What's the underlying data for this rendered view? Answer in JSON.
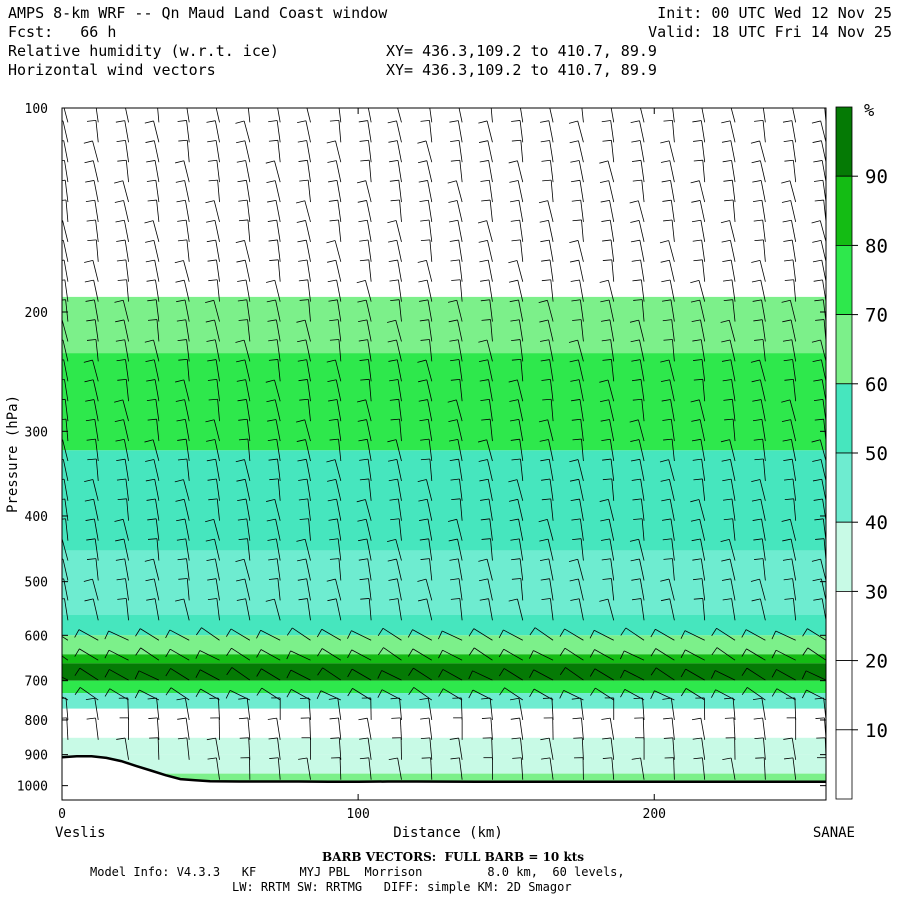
{
  "header": {
    "title": "AMPS 8-km WRF -- Qn Maud Land Coast window",
    "fcst": "Fcst:   66 h",
    "field1": "Relative humidity (w.r.t. ice)",
    "field2": "Horizontal wind vectors",
    "xy1": "XY= 436.3,109.2 to 410.7, 89.9",
    "xy2": "XY= 436.3,109.2 to 410.7, 89.9",
    "init": "Init: 00 UTC Wed 12 Nov 25",
    "valid": "Valid: 18 UTC Fri 14 Nov 25"
  },
  "footer": {
    "barb": "BARB VECTORS:  FULL BARB = 10 kts",
    "model1": "Model Info: V4.3.3   KF      MYJ PBL  Morrison         8.0 km,  60 levels,",
    "model2": "LW: RRTM SW: RRTMG   DIFF: simple KM: 2D Smagor"
  },
  "chart_data": {
    "type": "heatmap",
    "title": "Relative humidity (w.r.t. ice)",
    "xlabel": "Distance (km)",
    "ylabel": "Pressure (hPa)",
    "xlim": [
      0,
      258
    ],
    "ylim": [
      100,
      1050
    ],
    "y_scale": "log",
    "x_ticks": [
      0,
      100,
      200
    ],
    "y_ticks": [
      100,
      200,
      300,
      400,
      500,
      600,
      700,
      800,
      900,
      1000
    ],
    "x_end_labels": [
      "Veslis",
      "SANAE"
    ],
    "colorbar": {
      "unit": "%",
      "labels": [
        10,
        20,
        30,
        40,
        50,
        60,
        70,
        80,
        90
      ],
      "bins": [
        {
          "range": [
            0,
            30
          ],
          "color": "#ffffff"
        },
        {
          "range": [
            30,
            40
          ],
          "color": "#c8fae6"
        },
        {
          "range": [
            40,
            50
          ],
          "color": "#6eecd0"
        },
        {
          "range": [
            50,
            60
          ],
          "color": "#46e6be"
        },
        {
          "range": [
            60,
            70
          ],
          "color": "#7cf08a"
        },
        {
          "range": [
            70,
            80
          ],
          "color": "#2ee84c"
        },
        {
          "range": [
            80,
            90
          ],
          "color": "#14bc14"
        },
        {
          "range": [
            90,
            100
          ],
          "color": "#057a05"
        }
      ]
    },
    "rh_layers": [
      {
        "p_top": 100,
        "p_bot": 190,
        "rh": 10
      },
      {
        "p_top": 190,
        "p_bot": 230,
        "rh": 65
      },
      {
        "p_top": 230,
        "p_bot": 320,
        "rh": 75
      },
      {
        "p_top": 320,
        "p_bot": 450,
        "rh": 55
      },
      {
        "p_top": 450,
        "p_bot": 560,
        "rh": 45
      },
      {
        "p_top": 560,
        "p_bot": 600,
        "rh": 55
      },
      {
        "p_top": 600,
        "p_bot": 640,
        "rh": 65
      },
      {
        "p_top": 640,
        "p_bot": 660,
        "rh": 85
      },
      {
        "p_top": 660,
        "p_bot": 700,
        "rh": 95
      },
      {
        "p_top": 700,
        "p_bot": 730,
        "rh": 75
      },
      {
        "p_top": 730,
        "p_bot": 770,
        "rh": 45
      },
      {
        "p_top": 770,
        "p_bot": 850,
        "rh": 20
      },
      {
        "p_top": 850,
        "p_bot": 900,
        "rh": 35
      },
      {
        "p_top": 900,
        "p_bot": 960,
        "rh": 30
      },
      {
        "p_top": 960,
        "p_bot": 985,
        "rh": 65
      }
    ],
    "terrain": {
      "distance_km": [
        0,
        5,
        10,
        15,
        20,
        25,
        30,
        35,
        40,
        45,
        50,
        60,
        70,
        80,
        90,
        100,
        110,
        120,
        140,
        160,
        180,
        200,
        220,
        240,
        258
      ],
      "pressure_hPa": [
        908,
        905,
        905,
        910,
        920,
        935,
        950,
        965,
        978,
        982,
        985,
        986,
        986,
        986,
        987,
        987,
        986,
        986,
        987,
        987,
        987,
        987,
        987,
        987,
        987
      ]
    },
    "wind_barbs": "horizontal wind vectors, full barb = 10 kts"
  }
}
